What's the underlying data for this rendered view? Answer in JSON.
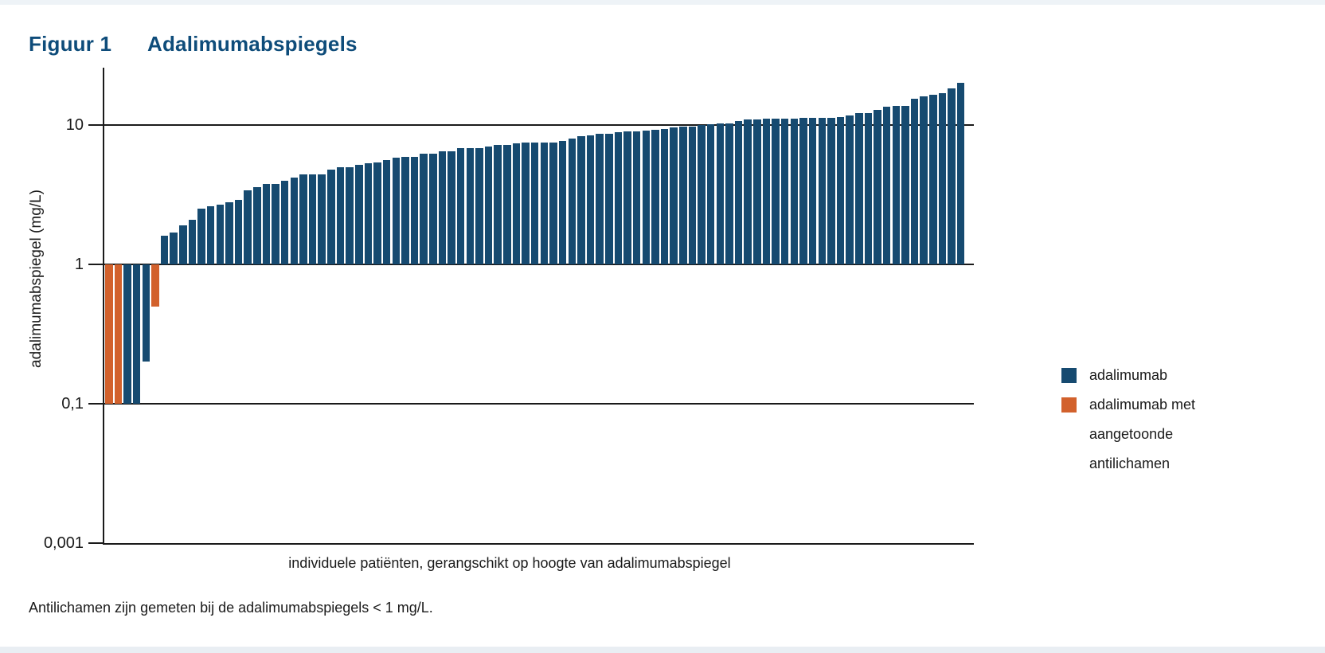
{
  "title": {
    "label": "Figuur 1",
    "text": "Adalimumabspiegels"
  },
  "chart_data": {
    "type": "bar",
    "title": "Adalimumabspiegels",
    "xlabel": "individuele patiënten, gerangschikt op hoogte van adalimumabspiegel",
    "ylabel": "adalimumabspiegel (mg/L)",
    "yscale": "log",
    "baseline": 1,
    "ytick_labels": [
      "10",
      "1",
      "0,1",
      "0,001"
    ],
    "grid": "horizontal",
    "legend_position": "right",
    "colors": {
      "adalimumab": "#164a70",
      "antibodies": "#d2612c"
    },
    "legend": [
      {
        "label": "adalimumab",
        "color": "#164a70"
      },
      {
        "label": "adalimumab met aangetoonde antilichamen",
        "color": "#d2612c"
      }
    ],
    "values": [
      0.1,
      0.1,
      0.1,
      0.1,
      0.2,
      0.5,
      1.6,
      1.7,
      1.9,
      2.1,
      2.5,
      2.6,
      2.7,
      2.8,
      2.9,
      3.4,
      3.6,
      3.8,
      3.8,
      4.0,
      4.2,
      4.4,
      4.4,
      4.4,
      4.8,
      5.0,
      5.0,
      5.2,
      5.3,
      5.4,
      5.6,
      5.8,
      5.9,
      5.9,
      6.2,
      6.2,
      6.5,
      6.5,
      6.8,
      6.8,
      6.8,
      7.0,
      7.2,
      7.2,
      7.4,
      7.5,
      7.5,
      7.5,
      7.5,
      7.7,
      8.0,
      8.3,
      8.4,
      8.6,
      8.6,
      8.9,
      9.0,
      9.0,
      9.1,
      9.3,
      9.4,
      9.6,
      9.7,
      9.8,
      10.0,
      10.1,
      10.2,
      10.3,
      10.7,
      11.0,
      11.0,
      11.1,
      11.1,
      11.1,
      11.1,
      11.2,
      11.3,
      11.3,
      11.3,
      11.4,
      11.7,
      12.2,
      12.2,
      12.8,
      13.6,
      13.7,
      13.8,
      15.5,
      16.0,
      16.5,
      17.0,
      18.2,
      20.0
    ],
    "antibody_indices": [
      0,
      1,
      5
    ]
  },
  "legend_display": {
    "row1": "adalimumab",
    "row2_lines": [
      "adalimumab met",
      "aangetoonde",
      "antilichamen"
    ]
  },
  "footnote": "Antilichamen zijn gemeten bij de adalimumabspiegels < 1 mg/L.",
  "bands": {
    "top_color": "#eef3f7",
    "bottom_color": "#e9eef3"
  }
}
